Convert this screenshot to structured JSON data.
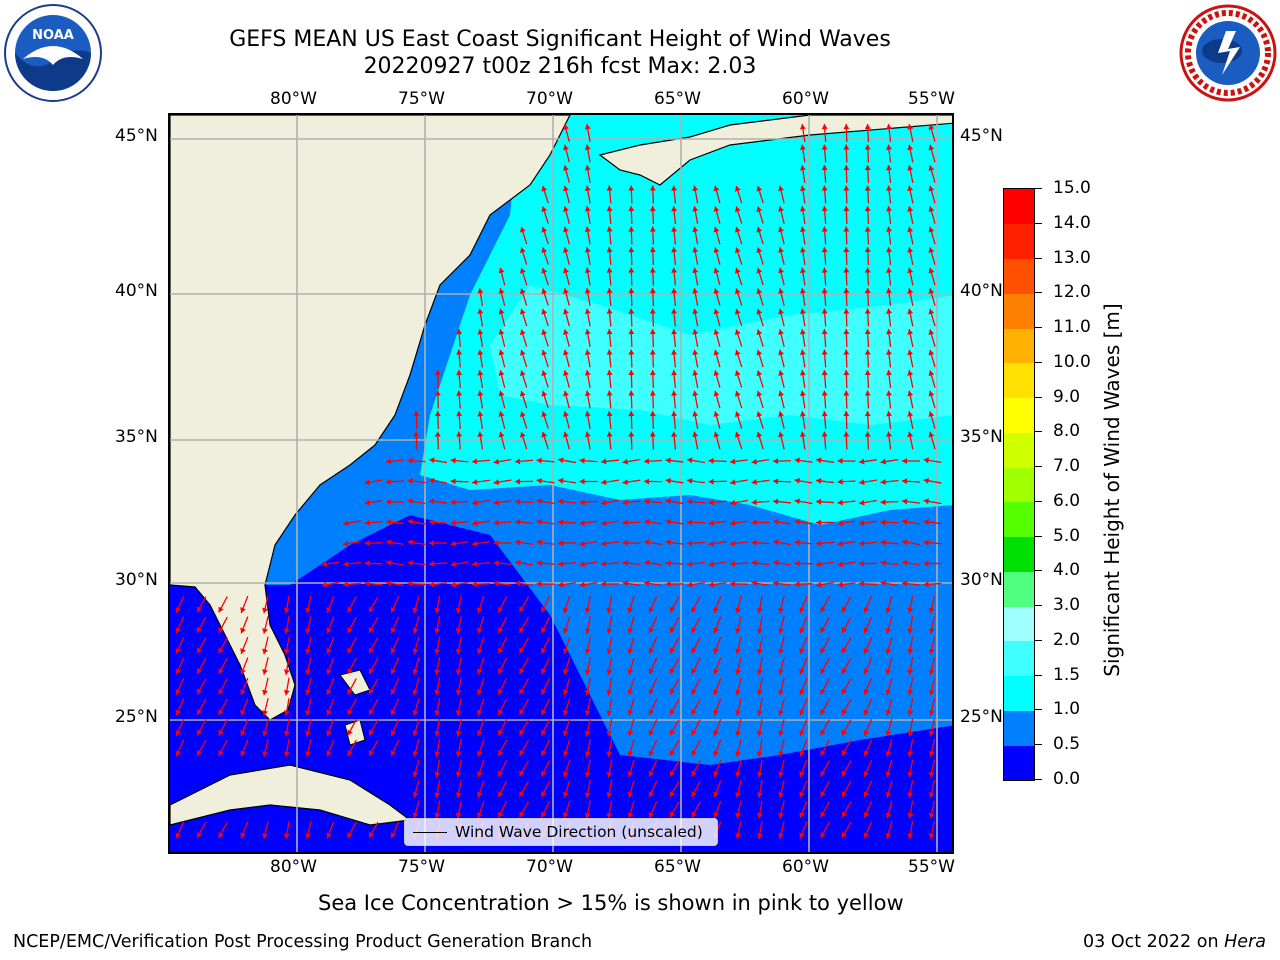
{
  "title_line1": "GEFS MEAN US East Coast Significant Height of Wind Waves",
  "title_line2": "20220927 t00z 216h fcst   Max: 2.03",
  "lon_ticks": [
    "80°W",
    "75°W",
    "70°W",
    "65°W",
    "60°W",
    "55°W"
  ],
  "lat_ticks": [
    "45°N",
    "40°N",
    "35°N",
    "30°N",
    "25°N"
  ],
  "legend_label": "Wind Wave Direction (unscaled)",
  "colorbar": {
    "title": "Significant Height of Wind Waves [m]",
    "labels": [
      "15.0",
      "14.0",
      "13.0",
      "12.0",
      "11.0",
      "10.0",
      "9.0",
      "8.0",
      "7.0",
      "6.0",
      "5.0",
      "4.0",
      "3.0",
      "2.0",
      "1.5",
      "1.0",
      "0.5",
      "0.0"
    ],
    "colors_bottom_to_top": [
      "#0000ff",
      "#0080ff",
      "#00ffff",
      "#40ffff",
      "#a0ffff",
      "#50ff80",
      "#00e000",
      "#55ff00",
      "#a0ff00",
      "#d0ff00",
      "#ffff00",
      "#ffe000",
      "#ffb000",
      "#ff8000",
      "#ff5000",
      "#ff2000",
      "#ff0000"
    ]
  },
  "subtitle": "Sea Ice Concentration > 15% is shown in pink to yellow",
  "credit_left": "NCEP/EMC/Verification Post Processing Product Generation Branch",
  "credit_right_date": "03 Oct 2022 on",
  "credit_right_host": "Hera",
  "colors": {
    "land": "#efefdc",
    "arrow": "#ff0000",
    "grid": "#b0b0b0"
  }
}
